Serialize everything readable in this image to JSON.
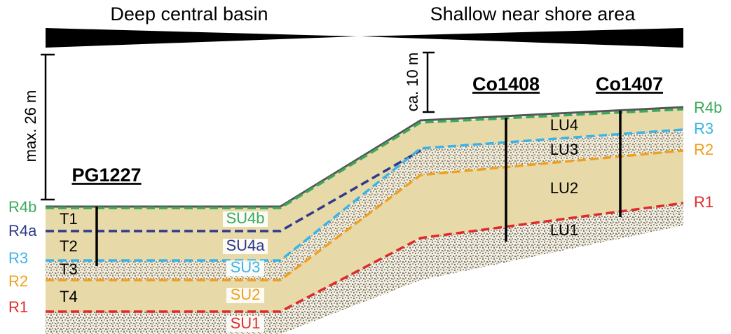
{
  "header": {
    "left_title": "Deep central basin",
    "right_title": "Shallow near shore area"
  },
  "scales": [
    {
      "label": "max. 26 m"
    },
    {
      "label": "ca. 10 m"
    }
  ],
  "cores": [
    {
      "label": "PG1227"
    },
    {
      "label": "Co1408"
    },
    {
      "label": "Co1407"
    }
  ],
  "reflectors_left": [
    "R4b",
    "R4a",
    "R3",
    "R2",
    "R1"
  ],
  "reflectors_right": [
    "R4b",
    "R3",
    "R2",
    "R1"
  ],
  "core_units": [
    "T1",
    "T2",
    "T3",
    "T4"
  ],
  "seismic_units": [
    "SU4b",
    "SU4a",
    "SU3",
    "SU2",
    "SU1"
  ],
  "lithologic_units": [
    "LU4",
    "LU3",
    "LU2",
    "LU1"
  ]
}
